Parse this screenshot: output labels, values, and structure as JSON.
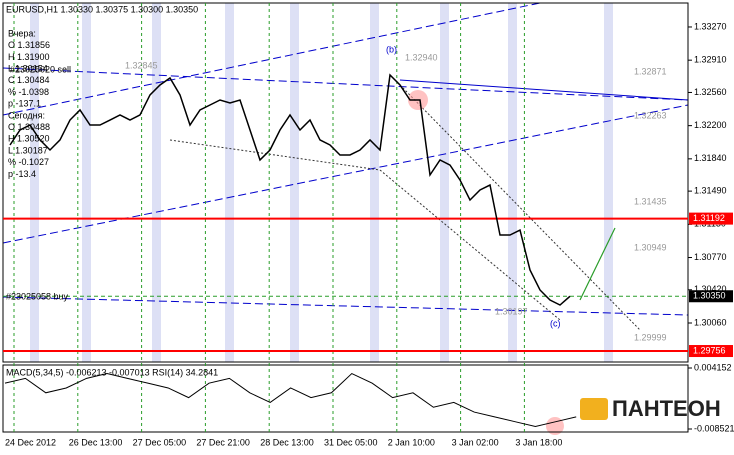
{
  "chart_data": {
    "type": "line",
    "symbol_header": "EURUSD,H1  1.30330 1.30375 1.30300 1.30350",
    "info_lines": [
      "Вчера:",
      "O 1.31856",
      "H 1.31900",
      "L 1.30154",
      "C 1.30484",
      "% -1.0398",
      "p -137.1",
      "Сегодня:",
      "O 1.30488",
      "H 1.30520",
      "L 1.30187",
      "% -0.1027",
      "p -13.4"
    ],
    "annotations": [
      "#23025020 sell",
      "#23025058 buy",
      "(b)",
      "(c)",
      "1.32940",
      "1.32871",
      "1.32845",
      "1.32263",
      "1.31435",
      "1.30949",
      "1.30197",
      "1.29999"
    ],
    "x_labels": [
      "24 Dec 2012",
      "26 Dec 13:00",
      "27 Dec 05:00",
      "27 Dec 21:00",
      "28 Dec 13:00",
      "31 Dec 05:00",
      "2 Jan 10:00",
      "3 Jan 02:00",
      "3 Jan 18:00"
    ],
    "series": [
      {
        "name": "Close",
        "color": "#000000",
        "values": [
          1.3199,
          1.32153,
          1.32207,
          1.32045,
          1.31936,
          1.32045,
          1.32261,
          1.3237,
          1.32207,
          1.32207,
          1.32261,
          1.32316,
          1.32261,
          1.32316,
          1.32533,
          1.32641,
          1.32717,
          1.32533,
          1.32207,
          1.3237,
          1.32424,
          1.32478,
          1.32446,
          1.32478,
          1.32153,
          1.31828,
          1.31936,
          1.32153,
          1.32316,
          1.32153,
          1.32261,
          1.32045,
          1.3199,
          1.31882,
          1.31882,
          1.31936,
          1.32045,
          1.31936,
          1.32749,
          1.32641,
          1.32478,
          1.32478,
          1.31665,
          1.31828,
          1.31773,
          1.31611,
          1.31394,
          1.31502,
          1.31556,
          1.31014,
          1.31014,
          1.31068,
          1.30635,
          1.30418,
          1.30309,
          1.30255,
          1.3035
        ]
      }
    ],
    "ylim": [
      1.29637,
      1.3353
    ],
    "yticks": [
      {
        "value": 1.3327,
        "label": "1.33270"
      },
      {
        "value": 1.3291,
        "label": "1.32910"
      },
      {
        "value": 1.3256,
        "label": "1.32560"
      },
      {
        "value": 1.322,
        "label": "1.32200"
      },
      {
        "value": 1.3184,
        "label": "1.31840"
      },
      {
        "value": 1.3149,
        "label": "1.31490"
      },
      {
        "value": 1.3113,
        "label": "1.31130"
      },
      {
        "value": 1.3077,
        "label": "1.30770"
      },
      {
        "value": 1.3042,
        "label": "1.30420"
      },
      {
        "value": 1.3006,
        "label": "1.30060"
      }
    ],
    "levels": [
      {
        "value": 1.31192,
        "label": "1.31192",
        "color": "#ff0000"
      },
      {
        "value": 1.3035,
        "label": "1.30350",
        "color": "#000000"
      },
      {
        "value": 1.29756,
        "label": "1.29756",
        "color": "#ff0000"
      }
    ],
    "macd": {
      "title": "MACD(5,34,5) -0.006213 -0.007013 RSI(14) 34.2841",
      "color": "#000000",
      "values": [
        0.001,
        0.002,
        -0.001,
        0.0,
        0.002,
        0.003,
        0.002,
        0.001,
        0.0,
        -0.002,
        0.001,
        0.002,
        -0.001,
        -0.003,
        0.0,
        -0.002,
        -0.001,
        0.003,
        0.001,
        -0.002,
        -0.001,
        -0.004,
        -0.003,
        -0.005,
        -0.006,
        -0.007,
        -0.008,
        -0.007,
        -0.006
      ],
      "ylim": [
        -0.008521,
        0.004152
      ],
      "yticks": [
        0.004152,
        -0.008521
      ]
    },
    "logo": "ПАНТЕОН"
  }
}
